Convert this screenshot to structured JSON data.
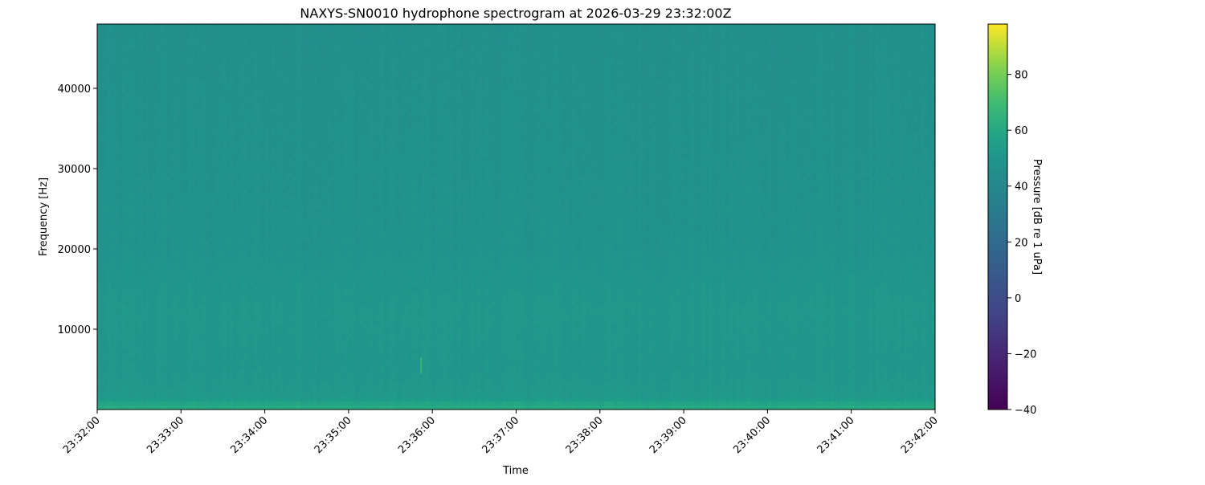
{
  "chart_data": {
    "type": "heatmap",
    "title": "NAXYS-SN0010 hydrophone spectrogram at 2026-03-29 23:32:00Z",
    "xlabel": "Time",
    "ylabel": "Frequency [Hz]",
    "x_range": [
      "23:32:00",
      "23:42:00"
    ],
    "x_ticks": [
      "23:32:00",
      "23:33:00",
      "23:34:00",
      "23:35:00",
      "23:36:00",
      "23:37:00",
      "23:38:00",
      "23:39:00",
      "23:40:00",
      "23:41:00",
      "23:42:00"
    ],
    "ylim": [
      0,
      48000
    ],
    "y_ticks": [
      10000,
      20000,
      30000,
      40000
    ],
    "colormap": "viridis",
    "colorbar": {
      "label": "Pressure [dB re 1 uPa]",
      "range": [
        -40,
        98
      ],
      "ticks": [
        -40,
        -20,
        0,
        20,
        40,
        60,
        80
      ]
    },
    "level_profile_db": [
      {
        "freq_hz": 0,
        "db": 62
      },
      {
        "freq_hz": 500,
        "db": 60
      },
      {
        "freq_hz": 1500,
        "db": 52
      },
      {
        "freq_hz": 5000,
        "db": 50
      },
      {
        "freq_hz": 12500,
        "db": 51
      },
      {
        "freq_hz": 20000,
        "db": 48
      },
      {
        "freq_hz": 48000,
        "db": 46
      }
    ],
    "transient_events": [
      {
        "time": "23:35:52",
        "freq_range_hz": [
          4500,
          6500
        ],
        "db": 66
      }
    ],
    "grid": false
  }
}
